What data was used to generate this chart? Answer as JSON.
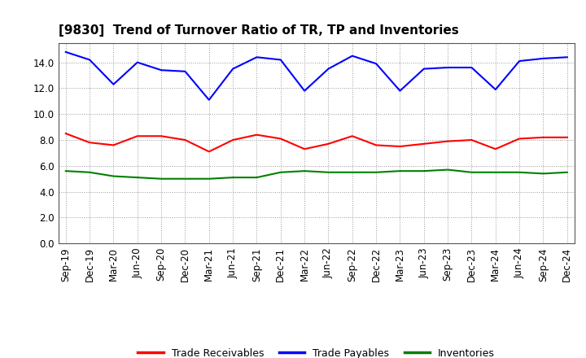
{
  "title": "[9830]  Trend of Turnover Ratio of TR, TP and Inventories",
  "x_labels": [
    "Sep-19",
    "Dec-19",
    "Mar-20",
    "Jun-20",
    "Sep-20",
    "Dec-20",
    "Mar-21",
    "Jun-21",
    "Sep-21",
    "Dec-21",
    "Mar-22",
    "Jun-22",
    "Sep-22",
    "Dec-22",
    "Mar-23",
    "Jun-23",
    "Sep-23",
    "Dec-23",
    "Mar-24",
    "Jun-24",
    "Sep-24",
    "Dec-24"
  ],
  "trade_receivables": [
    8.5,
    7.8,
    7.6,
    8.3,
    8.3,
    8.0,
    7.1,
    8.0,
    8.4,
    8.1,
    7.3,
    7.7,
    8.3,
    7.6,
    7.5,
    7.7,
    7.9,
    8.0,
    7.3,
    8.1,
    8.2,
    8.2
  ],
  "trade_payables": [
    14.8,
    14.2,
    12.3,
    14.0,
    13.4,
    13.3,
    11.1,
    13.5,
    14.4,
    14.2,
    11.8,
    13.5,
    14.5,
    13.9,
    11.8,
    13.5,
    13.6,
    13.6,
    11.9,
    14.1,
    14.3,
    14.4
  ],
  "inventories": [
    5.6,
    5.5,
    5.2,
    5.1,
    5.0,
    5.0,
    5.0,
    5.1,
    5.1,
    5.5,
    5.6,
    5.5,
    5.5,
    5.5,
    5.6,
    5.6,
    5.7,
    5.5,
    5.5,
    5.5,
    5.4,
    5.5
  ],
  "ylim": [
    0,
    15.5
  ],
  "yticks": [
    0.0,
    2.0,
    4.0,
    6.0,
    8.0,
    10.0,
    12.0,
    14.0
  ],
  "color_tr": "#ff0000",
  "color_tp": "#0000ff",
  "color_inv": "#008000",
  "legend_labels": [
    "Trade Receivables",
    "Trade Payables",
    "Inventories"
  ],
  "background_color": "#ffffff",
  "grid_color": "#999999",
  "title_fontsize": 11,
  "tick_fontsize": 8.5,
  "linewidth": 1.5
}
